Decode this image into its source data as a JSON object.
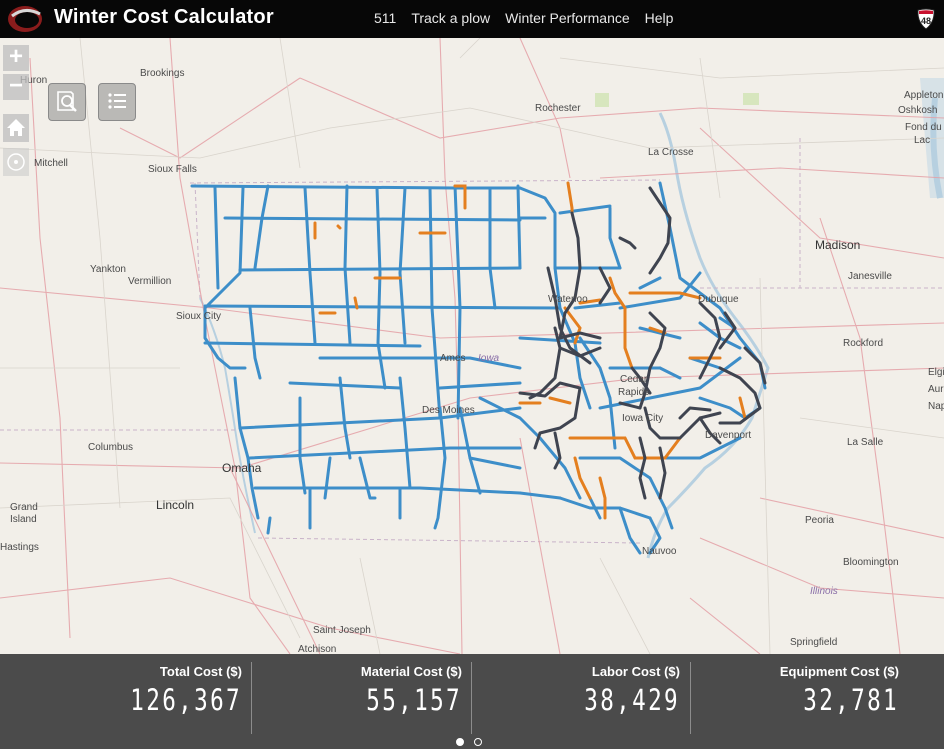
{
  "header": {
    "title": "Winter Cost Calculator",
    "nav": [
      "511",
      "Track a plow",
      "Winter Performance",
      "Help"
    ],
    "shield_number": "48"
  },
  "map": {
    "controls": {
      "zoom_in": "+",
      "zoom_out": "−"
    },
    "labels": {
      "huron": "Huron",
      "brookings": "Brookings",
      "mitchell": "Mitchell",
      "sioux_falls": "Sioux Falls",
      "yankton": "Yankton",
      "vermillion": "Vermillion",
      "sioux_city": "Sioux City",
      "columbus": "Columbus",
      "omaha": "Omaha",
      "lincoln": "Lincoln",
      "grand_island_1": "Grand",
      "grand_island_2": "Island",
      "hastings": "Hastings",
      "saint_joseph": "Saint Joseph",
      "atchison": "Atchison",
      "rochester": "Rochester",
      "la_crosse": "La Crosse",
      "madison": "Madison",
      "janesville": "Janesville",
      "rockford": "Rockford",
      "appleton": "Appleton",
      "oshkosh": "Oshkosh",
      "fond_du": "Fond du",
      "lac": "Lac",
      "dubuque": "Dubuque",
      "waterloo": "Waterloo",
      "ames": "Ames",
      "iowa": "Iowa",
      "cedar_rapids_1": "Cedar",
      "cedar_rapids_2": "Rapids",
      "iowa_city": "Iowa City",
      "davenport": "Davenport",
      "des_moines": "Des Moines",
      "la_salle": "La Salle",
      "peoria": "Peoria",
      "bloomington": "Bloomington",
      "illinois": "Illinois",
      "springfield": "Springfield",
      "nauvoo": "Nauvoo",
      "elgin": "Elgi",
      "aurora": "Aur",
      "naperville": "Nap"
    }
  },
  "colors": {
    "normal": "#3d8ec9",
    "high": "#e47f1f",
    "very_high": "#3f4450"
  },
  "stats": [
    {
      "label": "Total Cost ($)",
      "value": "126,367"
    },
    {
      "label": "Material Cost ($)",
      "value": "55,157"
    },
    {
      "label": "Labor Cost ($)",
      "value": "38,429"
    },
    {
      "label": "Equipment Cost ($)",
      "value": "32,781"
    }
  ],
  "pager": {
    "count": 2,
    "active": 0
  }
}
